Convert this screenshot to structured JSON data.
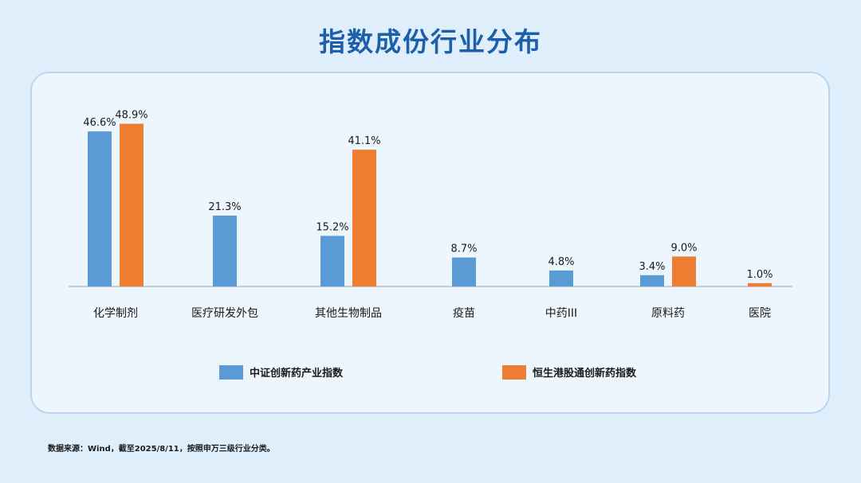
{
  "title": "指数成份行业分布",
  "footnote": "数据来源：Wind，截至2025/8/11，按照申万三级行业分类。",
  "colors": {
    "series1": "#5b9bd5",
    "series2": "#ed7d31",
    "title": "#1d5fa8",
    "axis": "#a6a6a6"
  },
  "chart_data": {
    "type": "bar",
    "title": "指数成份行业分布",
    "categories": [
      "化学制剂",
      "医疗研发外包",
      "其他生物制品",
      "疫苗",
      "中药III",
      "原料药",
      "医院"
    ],
    "series": [
      {
        "name": "中证创新药产业指数",
        "values": [
          46.6,
          21.3,
          15.2,
          8.7,
          4.8,
          3.4,
          null
        ],
        "labels": [
          "46.6%",
          "21.3%",
          "15.2%",
          "8.7%",
          "4.8%",
          "3.4%",
          ""
        ]
      },
      {
        "name": "恒生港股通创新药指数",
        "values": [
          48.9,
          null,
          41.1,
          null,
          null,
          9.0,
          1.0
        ],
        "labels": [
          "48.9%",
          "",
          "41.1%",
          "",
          "",
          "9.0%",
          "1.0%"
        ]
      }
    ],
    "ylim": [
      0,
      55
    ],
    "grid": false,
    "legend_position": "bottom"
  }
}
